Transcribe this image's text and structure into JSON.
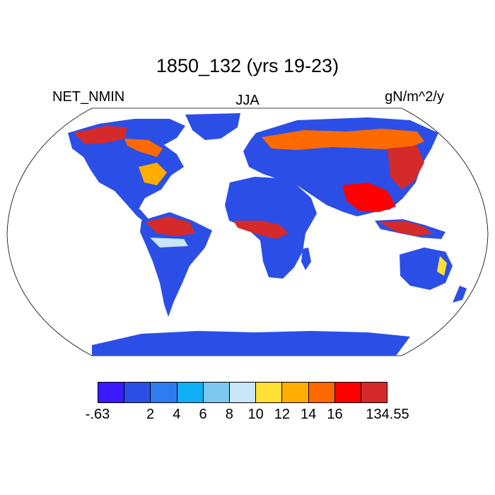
{
  "title": "1850_132 (yrs 19-23)",
  "variable": "NET_NMIN",
  "season": "JJA",
  "units": "gN/m^2/y",
  "colorbar": {
    "colors": [
      "#3b1aff",
      "#2b4fe6",
      "#2f7bf0",
      "#10aef5",
      "#7cc8ef",
      "#c8e6f6",
      "#ffe033",
      "#ffad00",
      "#ff6a00",
      "#ff0000",
      "#d42a2a"
    ],
    "labels": [
      "-.63",
      "2",
      "4",
      "6",
      "8",
      "10",
      "12",
      "14",
      "16",
      "134.55"
    ]
  },
  "chart_data": {
    "type": "heatmap",
    "title": "1850_132 (yrs 19-23)",
    "variable": "NET_NMIN",
    "season": "JJA",
    "units": "gN/m^2/y",
    "projection": "Robinson",
    "levels": [
      -0.63,
      2,
      4,
      6,
      8,
      10,
      12,
      14,
      16,
      134.55
    ],
    "ocean": "white",
    "regions": [
      {
        "region": "Antarctica",
        "range": [
          -0.63,
          2
        ]
      },
      {
        "region": "Greenland",
        "range": [
          -0.63,
          2
        ]
      },
      {
        "region": "Sahara / Arabia",
        "range": [
          -0.63,
          2
        ]
      },
      {
        "region": "Australia interior",
        "range": [
          -0.63,
          2
        ]
      },
      {
        "region": "Amazon basin",
        "range": [
          16,
          134.55
        ]
      },
      {
        "region": "Central Africa (Sahel belt)",
        "range": [
          14,
          134.55
        ]
      },
      {
        "region": "Southeast Asia",
        "range": [
          14,
          134.55
        ]
      },
      {
        "region": "Siberia / boreal Eurasia",
        "range": [
          12,
          134.55
        ]
      },
      {
        "region": "Eastern North America",
        "range": [
          10,
          16
        ]
      },
      {
        "region": "Canada / Alaska boreal",
        "range": [
          14,
          134.55
        ]
      }
    ]
  }
}
